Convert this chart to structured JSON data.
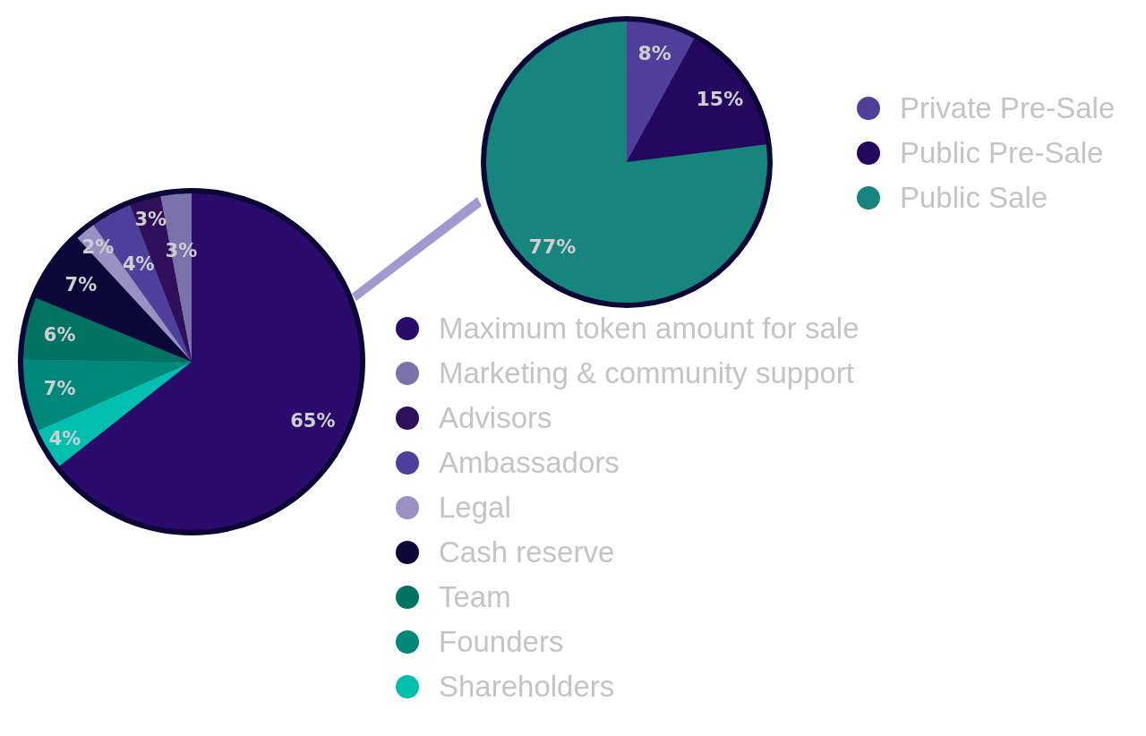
{
  "chart_data": [
    {
      "type": "pie",
      "categories": [
        "Maximum token amount for sale",
        "Marketing & community support",
        "Advisors",
        "Ambassadors",
        "Legal",
        "Cash reserve",
        "Team",
        "Founders",
        "Shareholders"
      ],
      "values": [
        65,
        3,
        3,
        4,
        2,
        7,
        6,
        7,
        4
      ],
      "value_labels": [
        "65%",
        "3%",
        "3%",
        "4%",
        "2%",
        "7%",
        "6%",
        "7%",
        "4%"
      ],
      "colors": [
        "#2a0a6b",
        "#7b72ab",
        "#2d0f5a",
        "#4f3f9c",
        "#9b90c4",
        "#0b0838",
        "#007363",
        "#00897b",
        "#00bfae"
      ],
      "legend": "bottom right"
    },
    {
      "type": "pie",
      "categories": [
        "Private Pre-Sale",
        "Public Pre-Sale",
        "Public Sale"
      ],
      "values": [
        8,
        15,
        77
      ],
      "value_labels": [
        "8%",
        "15%",
        "77%"
      ],
      "colors": [
        "#4f3f9a",
        "#24075e",
        "#17857d"
      ],
      "legend": "top right"
    }
  ]
}
